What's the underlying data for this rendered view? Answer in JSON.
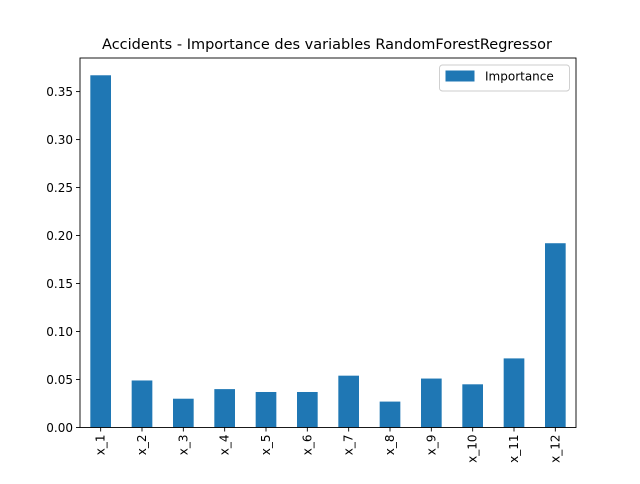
{
  "chart_data": {
    "type": "bar",
    "title": "Accidents - Importance des variables RandomForestRegressor",
    "xlabel": "",
    "ylabel": "",
    "categories": [
      "x_1",
      "x_2",
      "x_3",
      "x_4",
      "x_5",
      "x_6",
      "x_7",
      "x_8",
      "x_9",
      "x_10",
      "x_11",
      "x_12"
    ],
    "series": [
      {
        "name": "Importance",
        "color": "#1f77b4",
        "values": [
          0.367,
          0.049,
          0.03,
          0.04,
          0.037,
          0.037,
          0.054,
          0.027,
          0.051,
          0.045,
          0.072,
          0.192
        ]
      }
    ],
    "ylim": [
      0,
      0.385
    ],
    "yticks": [
      0.0,
      0.05,
      0.1,
      0.15,
      0.2,
      0.25,
      0.3,
      0.35
    ],
    "ytick_labels": [
      "0.00",
      "0.05",
      "0.10",
      "0.15",
      "0.20",
      "0.25",
      "0.30",
      "0.35"
    ],
    "grid": false,
    "legend_position": "top-right"
  }
}
